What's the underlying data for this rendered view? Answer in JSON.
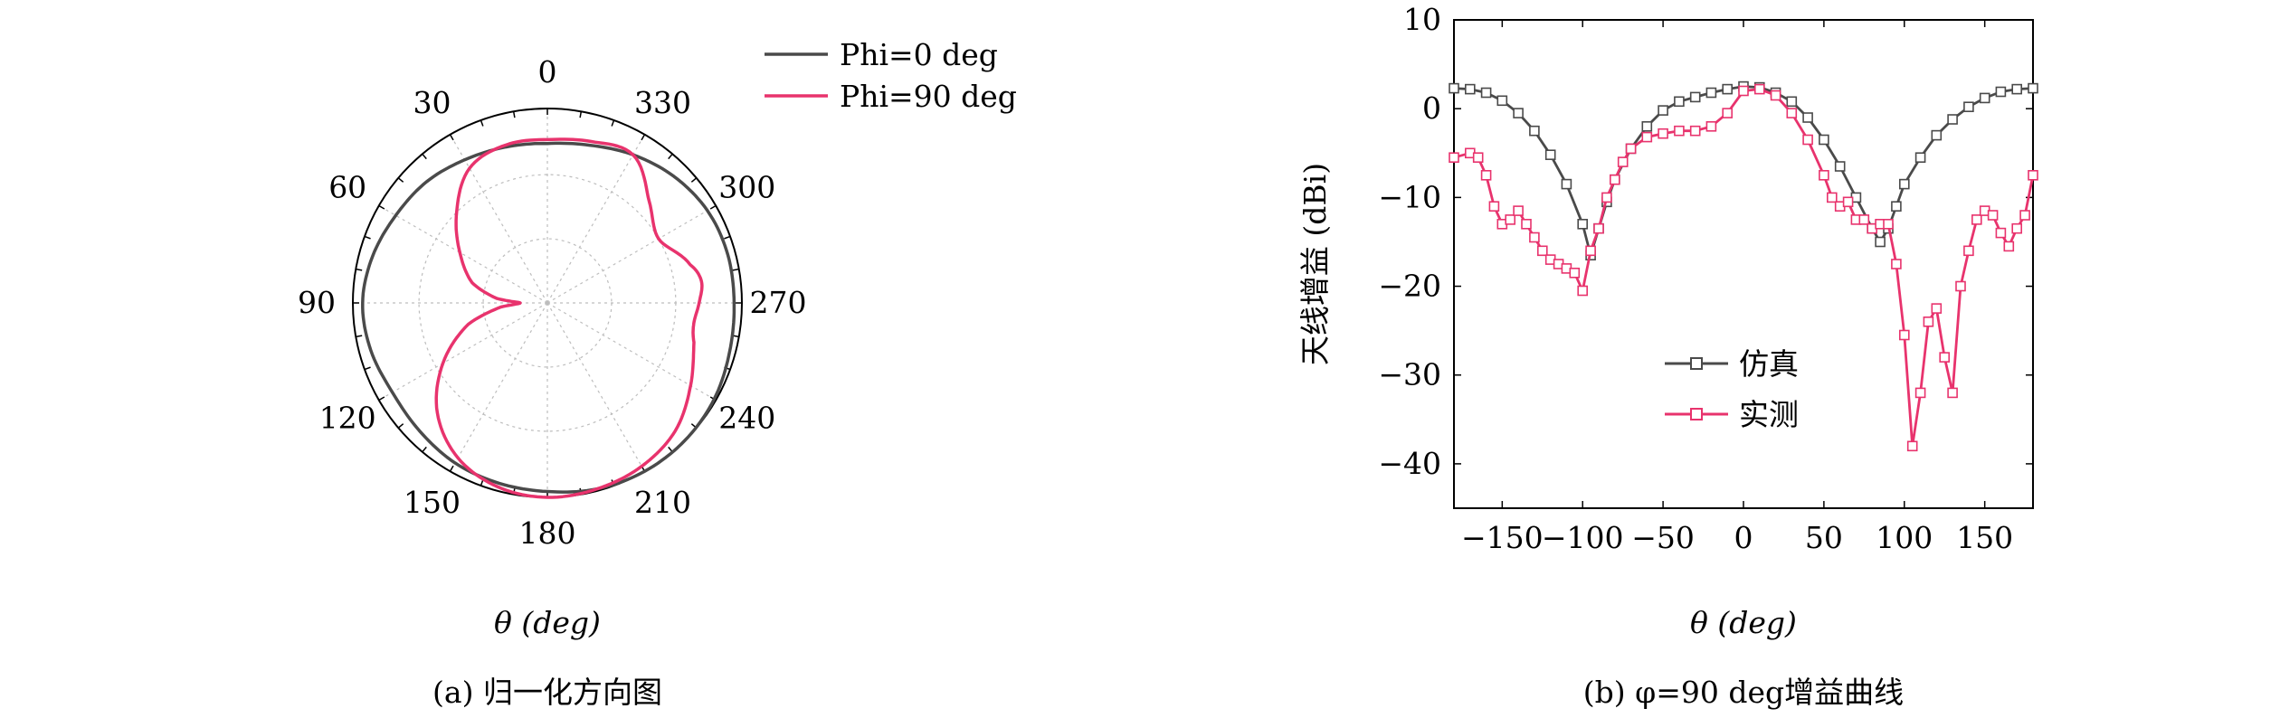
{
  "colors": {
    "sim": "#4a4a4a",
    "meas": "#e8336d",
    "grid": "#bdbdbd",
    "axis": "#000000",
    "marker_fill": "#ffffff"
  },
  "panel_a": {
    "caption": "(a) 归一化方向图",
    "axis_label": "θ (deg)",
    "angle_ticks": [
      "0",
      "30",
      "60",
      "90",
      "120",
      "150",
      "180",
      "210",
      "240",
      "270",
      "300",
      "330"
    ],
    "chart_data": {
      "type": "polar",
      "angle_direction": "counterclockwise",
      "zero_location": "top",
      "r_range": [
        0,
        1
      ],
      "r_grid": [
        0.33,
        0.66,
        1.0
      ],
      "legend_position": "top-right",
      "series": [
        {
          "name": "Phi=0 deg",
          "color": "#4a4a4a",
          "theta": [
            0,
            15,
            30,
            45,
            60,
            75,
            90,
            105,
            120,
            135,
            150,
            165,
            180,
            195,
            210,
            225,
            240,
            255,
            270,
            285,
            300,
            315,
            330,
            345,
            360
          ],
          "r": [
            0.82,
            0.83,
            0.85,
            0.88,
            0.9,
            0.93,
            0.95,
            0.94,
            0.92,
            0.93,
            0.95,
            0.96,
            0.97,
            0.99,
            1.0,
            1.0,
            0.99,
            0.97,
            0.96,
            0.96,
            0.95,
            0.92,
            0.88,
            0.84,
            0.82
          ]
        },
        {
          "name": "Phi=90 deg",
          "color": "#e8336d",
          "theta": [
            0,
            15,
            30,
            45,
            60,
            75,
            85,
            90,
            95,
            105,
            120,
            135,
            150,
            165,
            180,
            195,
            210,
            225,
            240,
            255,
            262,
            270,
            278,
            285,
            300,
            315,
            330,
            345,
            360
          ],
          "r": [
            0.84,
            0.84,
            0.8,
            0.66,
            0.52,
            0.4,
            0.26,
            0.14,
            0.24,
            0.42,
            0.62,
            0.8,
            0.92,
            0.98,
            1.0,
            0.99,
            0.97,
            0.93,
            0.85,
            0.78,
            0.76,
            0.78,
            0.8,
            0.76,
            0.66,
            0.74,
            0.88,
            0.86,
            0.84
          ]
        }
      ]
    }
  },
  "panel_b": {
    "caption": "(b) φ=90 deg增益曲线",
    "chart_data": {
      "type": "line",
      "xlabel": "θ (deg)",
      "ylabel": "天线增益 (dBi)",
      "xlim": [
        -180,
        180
      ],
      "ylim": [
        -45,
        10
      ],
      "xticks": [
        -150,
        -100,
        -50,
        0,
        50,
        100,
        150
      ],
      "yticks": [
        10,
        0,
        -10,
        -20,
        -30,
        -40
      ],
      "grid": false,
      "legend_position": "lower-center",
      "series": [
        {
          "name": "仿真",
          "color": "#4a4a4a",
          "x": [
            -180,
            -170,
            -160,
            -150,
            -140,
            -130,
            -120,
            -110,
            -100,
            -95,
            -90,
            -85,
            -80,
            -70,
            -60,
            -50,
            -40,
            -30,
            -20,
            -10,
            0,
            10,
            20,
            30,
            40,
            50,
            60,
            70,
            80,
            85,
            90,
            95,
            100,
            110,
            120,
            130,
            140,
            150,
            160,
            170,
            180
          ],
          "y": [
            2.3,
            2.2,
            1.8,
            0.9,
            -0.5,
            -2.5,
            -5.2,
            -8.5,
            -13.0,
            -16.5,
            -13.5,
            -10.5,
            -8.0,
            -4.5,
            -2.0,
            -0.2,
            0.8,
            1.3,
            1.8,
            2.2,
            2.5,
            2.4,
            1.8,
            0.8,
            -1.0,
            -3.5,
            -6.5,
            -10.0,
            -13.5,
            -15.0,
            -13.5,
            -11.0,
            -8.5,
            -5.5,
            -3.0,
            -1.2,
            0.2,
            1.2,
            1.9,
            2.2,
            2.3
          ]
        },
        {
          "name": "实测",
          "color": "#e8336d",
          "x": [
            -180,
            -170,
            -165,
            -160,
            -155,
            -150,
            -145,
            -140,
            -135,
            -130,
            -125,
            -120,
            -115,
            -110,
            -105,
            -100,
            -95,
            -90,
            -85,
            -80,
            -75,
            -70,
            -60,
            -50,
            -40,
            -30,
            -20,
            -10,
            0,
            10,
            20,
            30,
            40,
            50,
            55,
            60,
            65,
            70,
            75,
            80,
            85,
            90,
            95,
            100,
            105,
            110,
            115,
            120,
            125,
            130,
            135,
            140,
            145,
            150,
            155,
            160,
            165,
            170,
            175,
            180
          ],
          "y": [
            -5.5,
            -5.0,
            -5.5,
            -7.5,
            -11.0,
            -13.0,
            -12.5,
            -11.5,
            -13.0,
            -14.5,
            -16.0,
            -17.0,
            -17.5,
            -18.0,
            -18.5,
            -20.5,
            -16.0,
            -13.5,
            -10.0,
            -8.0,
            -6.0,
            -4.5,
            -3.2,
            -2.8,
            -2.5,
            -2.5,
            -2.0,
            -0.5,
            2.0,
            2.2,
            1.5,
            -0.5,
            -3.5,
            -7.5,
            -10.0,
            -11.0,
            -10.5,
            -12.5,
            -12.5,
            -13.5,
            -13.0,
            -13.0,
            -17.5,
            -25.5,
            -38.0,
            -32.0,
            -24.0,
            -22.5,
            -28.0,
            -32.0,
            -20.0,
            -16.0,
            -12.5,
            -11.5,
            -12.0,
            -14.0,
            -15.5,
            -13.5,
            -12.0,
            -7.5
          ]
        }
      ]
    }
  }
}
